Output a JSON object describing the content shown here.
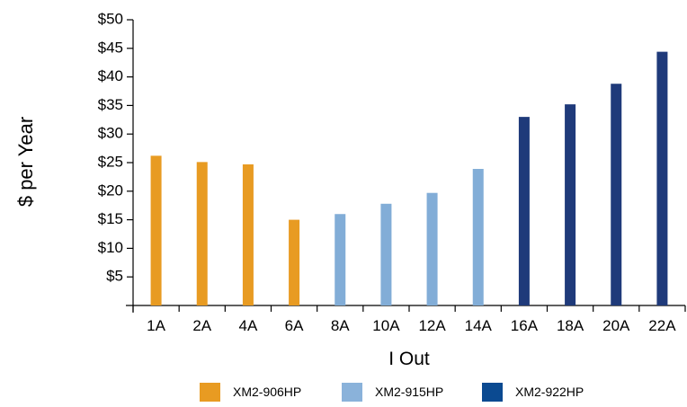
{
  "chart_data": {
    "type": "bar",
    "title": "",
    "xlabel": "I Out",
    "ylabel": "$ per Year",
    "ylim": [
      0,
      50
    ],
    "yticks": [
      5,
      10,
      15,
      20,
      25,
      30,
      35,
      40,
      45,
      50
    ],
    "ytick_labels": [
      "$5",
      "$10",
      "$15",
      "$20",
      "$25",
      "$30",
      "$35",
      "$40",
      "$45",
      "$50"
    ],
    "categories": [
      "1A",
      "2A",
      "4A",
      "6A",
      "8A",
      "10A",
      "12A",
      "14A",
      "16A",
      "18A",
      "20A",
      "22A"
    ],
    "values": [
      26.2,
      25.1,
      24.7,
      15.0,
      16.0,
      17.8,
      19.7,
      23.9,
      33.0,
      35.2,
      38.8,
      44.4
    ],
    "series_index": [
      0,
      0,
      0,
      0,
      1,
      1,
      1,
      1,
      2,
      2,
      2,
      2
    ],
    "grid": false,
    "legend_position": "bottom",
    "legend": [
      {
        "name": "XM2-906HP",
        "color": "#E89B22"
      },
      {
        "name": "XM2-915HP",
        "color": "#8AB2DA"
      },
      {
        "name": "XM2-922HP",
        "color": "#0B4A91"
      }
    ],
    "bar_colors": [
      "#E89B22",
      "#82ADD7",
      "#1F3A7A"
    ]
  }
}
